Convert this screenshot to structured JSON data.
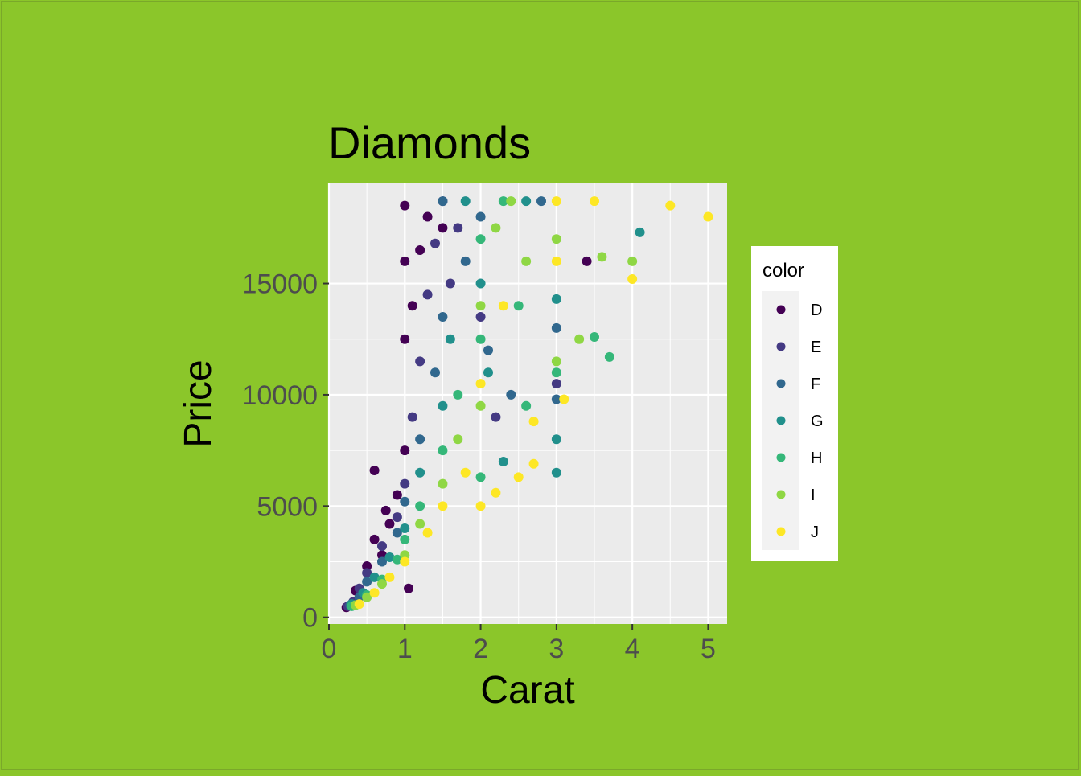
{
  "chart_data": {
    "type": "scatter",
    "title": "Diamonds",
    "xlabel": "Carat",
    "ylabel": "Price",
    "xlim": [
      0,
      5.25
    ],
    "ylim": [
      -300,
      19500
    ],
    "x_ticks": [
      0,
      1,
      2,
      3,
      4,
      5
    ],
    "x_tick_labels": [
      "0",
      "1",
      "2",
      "3",
      "4",
      "5"
    ],
    "y_ticks": [
      0,
      5000,
      10000,
      15000
    ],
    "y_tick_labels": [
      "0",
      "5000",
      "10000",
      "15000"
    ],
    "grid": true,
    "legend": {
      "title": "color",
      "position": "right",
      "entries": [
        "D",
        "E",
        "F",
        "G",
        "H",
        "I",
        "J"
      ]
    },
    "series": [
      {
        "name": "D",
        "color": "#440154",
        "points": [
          [
            0.23,
            450
          ],
          [
            0.3,
            600
          ],
          [
            0.35,
            1200
          ],
          [
            0.5,
            2300
          ],
          [
            0.6,
            3500
          ],
          [
            0.7,
            2800
          ],
          [
            0.8,
            4200
          ],
          [
            0.9,
            5500
          ],
          [
            1.0,
            7500
          ],
          [
            1.0,
            12500
          ],
          [
            1.0,
            16000
          ],
          [
            1.0,
            18500
          ],
          [
            1.1,
            14000
          ],
          [
            1.2,
            16500
          ],
          [
            1.3,
            18000
          ],
          [
            0.6,
            6600
          ],
          [
            0.75,
            4800
          ],
          [
            1.05,
            1300
          ],
          [
            1.5,
            17500
          ],
          [
            3.4,
            16000
          ]
        ]
      },
      {
        "name": "E",
        "color": "#443A83",
        "points": [
          [
            0.25,
            500
          ],
          [
            0.32,
            700
          ],
          [
            0.4,
            1300
          ],
          [
            0.5,
            2000
          ],
          [
            0.7,
            3200
          ],
          [
            0.9,
            4500
          ],
          [
            1.0,
            6000
          ],
          [
            1.1,
            9000
          ],
          [
            1.2,
            11500
          ],
          [
            1.3,
            14500
          ],
          [
            1.4,
            16800
          ],
          [
            1.5,
            18700
          ],
          [
            1.6,
            15000
          ],
          [
            1.7,
            17500
          ],
          [
            2.0,
            13500
          ],
          [
            2.2,
            9000
          ],
          [
            3.0,
            10500
          ]
        ]
      },
      {
        "name": "F",
        "color": "#31688E",
        "points": [
          [
            0.28,
            550
          ],
          [
            0.4,
            900
          ],
          [
            0.5,
            1600
          ],
          [
            0.7,
            2500
          ],
          [
            0.9,
            3800
          ],
          [
            1.0,
            5200
          ],
          [
            1.2,
            8000
          ],
          [
            1.4,
            11000
          ],
          [
            1.5,
            13500
          ],
          [
            1.5,
            18700
          ],
          [
            1.8,
            16000
          ],
          [
            2.0,
            18000
          ],
          [
            2.1,
            12000
          ],
          [
            2.4,
            10000
          ],
          [
            2.8,
            18700
          ],
          [
            3.0,
            9800
          ],
          [
            3.0,
            13000
          ]
        ]
      },
      {
        "name": "G",
        "color": "#21908C",
        "points": [
          [
            0.3,
            600
          ],
          [
            0.45,
            1100
          ],
          [
            0.6,
            1800
          ],
          [
            0.8,
            2700
          ],
          [
            1.0,
            4000
          ],
          [
            1.2,
            6500
          ],
          [
            1.5,
            9500
          ],
          [
            1.6,
            12500
          ],
          [
            1.8,
            18700
          ],
          [
            2.0,
            15000
          ],
          [
            2.1,
            11000
          ],
          [
            2.3,
            7000
          ],
          [
            2.6,
            18700
          ],
          [
            3.0,
            14300
          ],
          [
            3.0,
            8000
          ],
          [
            3.0,
            6500
          ],
          [
            4.1,
            17300
          ]
        ]
      },
      {
        "name": "H",
        "color": "#35B779",
        "points": [
          [
            0.3,
            500
          ],
          [
            0.5,
            1000
          ],
          [
            0.7,
            1700
          ],
          [
            0.9,
            2600
          ],
          [
            1.0,
            3500
          ],
          [
            1.2,
            5000
          ],
          [
            1.5,
            7500
          ],
          [
            1.7,
            10000
          ],
          [
            2.0,
            12500
          ],
          [
            2.0,
            17000
          ],
          [
            2.3,
            18700
          ],
          [
            2.5,
            14000
          ],
          [
            2.6,
            9500
          ],
          [
            3.0,
            11000
          ],
          [
            3.5,
            12600
          ],
          [
            3.7,
            11700
          ],
          [
            2.0,
            6300
          ]
        ]
      },
      {
        "name": "I",
        "color": "#8FD744",
        "points": [
          [
            0.35,
            550
          ],
          [
            0.5,
            900
          ],
          [
            0.7,
            1500
          ],
          [
            1.0,
            2800
          ],
          [
            1.2,
            4200
          ],
          [
            1.5,
            6000
          ],
          [
            1.7,
            8000
          ],
          [
            2.0,
            9500
          ],
          [
            2.0,
            14000
          ],
          [
            2.2,
            17500
          ],
          [
            2.4,
            18700
          ],
          [
            2.6,
            16000
          ],
          [
            3.0,
            17000
          ],
          [
            3.0,
            11500
          ],
          [
            3.3,
            12500
          ],
          [
            3.6,
            16200
          ],
          [
            4.0,
            16000
          ]
        ]
      },
      {
        "name": "J",
        "color": "#FDE725",
        "points": [
          [
            0.4,
            600
          ],
          [
            0.6,
            1100
          ],
          [
            0.8,
            1800
          ],
          [
            1.0,
            2500
          ],
          [
            1.3,
            3800
          ],
          [
            1.5,
            5000
          ],
          [
            1.8,
            6500
          ],
          [
            2.0,
            5000
          ],
          [
            2.2,
            5600
          ],
          [
            2.0,
            10500
          ],
          [
            2.3,
            14000
          ],
          [
            2.5,
            6300
          ],
          [
            2.7,
            6900
          ],
          [
            2.7,
            8800
          ],
          [
            3.0,
            18700
          ],
          [
            3.0,
            16000
          ],
          [
            3.1,
            9800
          ],
          [
            3.5,
            18700
          ],
          [
            4.0,
            15200
          ],
          [
            4.5,
            18500
          ],
          [
            5.0,
            18000
          ]
        ]
      }
    ]
  }
}
